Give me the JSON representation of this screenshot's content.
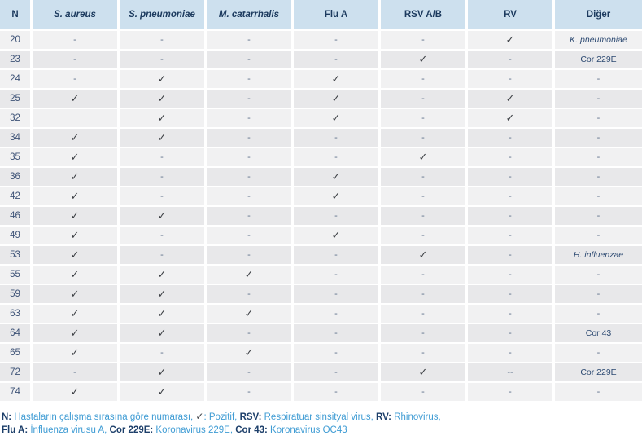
{
  "table": {
    "columns": [
      {
        "label": "N",
        "italic": false
      },
      {
        "label": "S. aureus",
        "italic": true
      },
      {
        "label": "S. pneumoniae",
        "italic": true
      },
      {
        "label": "M. catarrhalis",
        "italic": true
      },
      {
        "label": "Flu A",
        "italic": false
      },
      {
        "label": "RSV A/B",
        "italic": false
      },
      {
        "label": "RV",
        "italic": false
      },
      {
        "label": "Diğer",
        "italic": false
      }
    ],
    "rows": [
      {
        "n": "20",
        "results": [
          "-",
          "-",
          "-",
          "-",
          "-",
          "✓"
        ],
        "other": "K. pneumoniae",
        "other_italic": true
      },
      {
        "n": "23",
        "results": [
          "-",
          "-",
          "-",
          "-",
          "✓",
          "-"
        ],
        "other": "Cor 229E",
        "other_italic": false
      },
      {
        "n": "24",
        "results": [
          "-",
          "✓",
          "-",
          "✓",
          "-",
          "-"
        ],
        "other": "-",
        "other_italic": false
      },
      {
        "n": "25",
        "results": [
          "✓",
          "✓",
          "-",
          "✓",
          "-",
          "✓"
        ],
        "other": "-",
        "other_italic": false
      },
      {
        "n": "32",
        "results": [
          "",
          "✓",
          "-",
          "✓",
          "-",
          "✓"
        ],
        "other": "-",
        "other_italic": false
      },
      {
        "n": "34",
        "results": [
          "✓",
          "✓",
          "-",
          "-",
          "-",
          "-"
        ],
        "other": "-",
        "other_italic": false
      },
      {
        "n": "35",
        "results": [
          "✓",
          "-",
          "-",
          "-",
          "✓",
          "-"
        ],
        "other": "-",
        "other_italic": false
      },
      {
        "n": "36",
        "results": [
          "✓",
          "-",
          "-",
          "✓",
          "-",
          "-"
        ],
        "other": "-",
        "other_italic": false
      },
      {
        "n": "42",
        "results": [
          "✓",
          "-",
          "-",
          "✓",
          "-",
          "-"
        ],
        "other": "-",
        "other_italic": false
      },
      {
        "n": "46",
        "results": [
          "✓",
          "✓",
          "-",
          "-",
          "-",
          "-"
        ],
        "other": "-",
        "other_italic": false
      },
      {
        "n": "49",
        "results": [
          "✓",
          "-",
          "-",
          "✓",
          "-",
          "-"
        ],
        "other": "-",
        "other_italic": false
      },
      {
        "n": "53",
        "results": [
          "✓",
          "-",
          "-",
          "-",
          "✓",
          "-"
        ],
        "other": "H. influenzae",
        "other_italic": true
      },
      {
        "n": "55",
        "results": [
          "✓",
          "✓",
          "✓",
          "-",
          "-",
          "-"
        ],
        "other": "-",
        "other_italic": false
      },
      {
        "n": "59",
        "results": [
          "✓",
          "✓",
          "-",
          "-",
          "-",
          "-"
        ],
        "other": "-",
        "other_italic": false
      },
      {
        "n": "63",
        "results": [
          "✓",
          "✓",
          "✓",
          "-",
          "-",
          "-"
        ],
        "other": "-",
        "other_italic": false
      },
      {
        "n": "64",
        "results": [
          "✓",
          "✓",
          "-",
          "-",
          "-",
          "-"
        ],
        "other": "Cor 43",
        "other_italic": false
      },
      {
        "n": "65",
        "results": [
          "✓",
          "-",
          "✓",
          "-",
          "-",
          "-"
        ],
        "other": "-",
        "other_italic": false
      },
      {
        "n": "72",
        "results": [
          "-",
          "✓",
          "-",
          "-",
          "✓",
          "--"
        ],
        "other": "Cor 229E",
        "other_italic": false
      },
      {
        "n": "74",
        "results": [
          "✓",
          "✓",
          "-",
          "-",
          "-",
          "-"
        ],
        "other": "-",
        "other_italic": false
      }
    ]
  },
  "footnote": {
    "lines": [
      [
        {
          "text": "N:",
          "bold": true
        },
        {
          "text": " Hastaların çalışma sırasına göre numarası, ",
          "bold": false
        },
        {
          "text": "✓",
          "bold": false,
          "check": true
        },
        {
          "text": ": Pozitif, ",
          "bold": false
        },
        {
          "text": "RSV:",
          "bold": true
        },
        {
          "text": " Respiratuar sinsityal virus, ",
          "bold": false
        },
        {
          "text": "RV:",
          "bold": true
        },
        {
          "text": " Rhinovirus,",
          "bold": false
        }
      ],
      [
        {
          "text": "Flu A:",
          "bold": true
        },
        {
          "text": " İnfluenza virusu A, ",
          "bold": false
        },
        {
          "text": "Cor 229E:",
          "bold": true
        },
        {
          "text": " Koronavirus 229E, ",
          "bold": false
        },
        {
          "text": "Cor 43:",
          "bold": true
        },
        {
          "text": " Koronavirus OC43",
          "bold": false
        }
      ]
    ]
  },
  "legend": {
    "check_meaning": "Pozitif",
    "dash_meaning": "-"
  },
  "colors": {
    "header_bg": "#cde0ee",
    "header_text": "#1c3a5e",
    "row_light": "#f1f1f2",
    "row_dark": "#e8e8ea",
    "cell_text": "#2d4a72",
    "n_text": "#3e5377",
    "check": "#3d4045",
    "dash": "#5d6f8a",
    "footnote_text": "#3f9cd4",
    "footnote_label": "#1d3f6a"
  }
}
